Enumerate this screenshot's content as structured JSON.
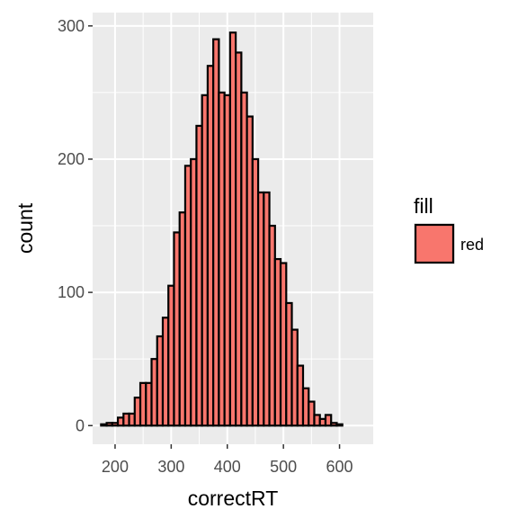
{
  "chart_data": {
    "type": "bar",
    "subtype": "histogram",
    "xlabel": "correctRT",
    "ylabel": "count",
    "xlim": [
      160,
      660
    ],
    "ylim": [
      -14,
      310
    ],
    "x_ticks": [
      200,
      300,
      400,
      500,
      600
    ],
    "y_ticks": [
      0,
      100,
      200,
      300
    ],
    "grid": true,
    "bin_start": 175,
    "bin_width": 10,
    "values": [
      1,
      2,
      2,
      6,
      9,
      9,
      21,
      32,
      32,
      50,
      67,
      81,
      105,
      145,
      160,
      195,
      200,
      225,
      248,
      270,
      290,
      250,
      248,
      295,
      280,
      250,
      232,
      200,
      175,
      175,
      150,
      125,
      122,
      92,
      72,
      45,
      28,
      18,
      8,
      5,
      8,
      2,
      1
    ],
    "bar_fill": "#F8766D",
    "bar_stroke": "#000000",
    "panel_bg": "#EBEBEB",
    "legend": {
      "position": "right",
      "title": "fill",
      "items": [
        {
          "label": "red",
          "color": "#F8766D"
        }
      ]
    }
  }
}
